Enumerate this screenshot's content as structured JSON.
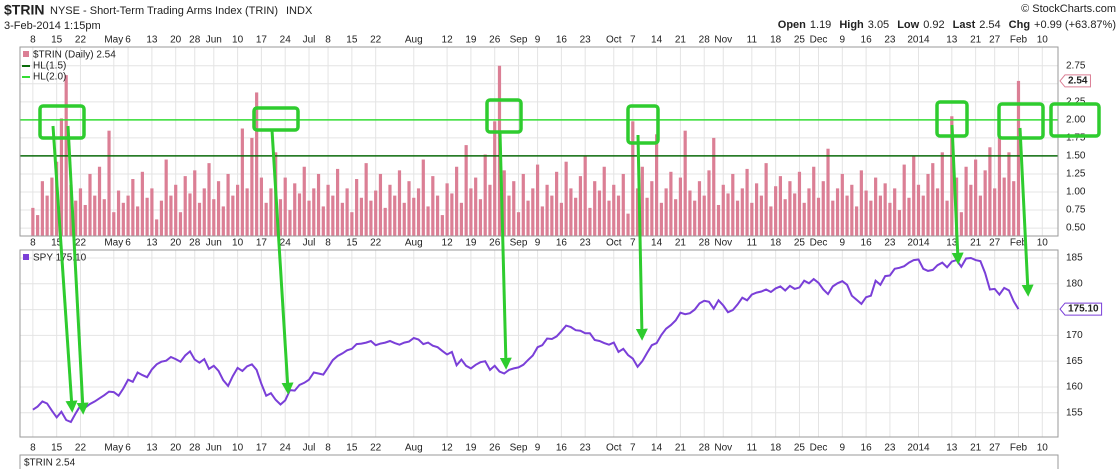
{
  "header": {
    "symbol": "$TRIN",
    "name": "NYSE - Short-Term Trading Arms Index (TRIN)",
    "exchange": "INDX",
    "timestamp": "3-Feb-2014 1:15pm",
    "credit": "© StockCharts.com",
    "quote": [
      {
        "label": "Open",
        "value": "1.19"
      },
      {
        "label": "High",
        "value": "3.05"
      },
      {
        "label": "Low",
        "value": "0.92"
      },
      {
        "label": "Last",
        "value": "2.54"
      },
      {
        "label": "Chg",
        "value": "+0.99 (+63.87%)"
      }
    ],
    "footer_label": "$TRIN 2.54"
  },
  "chart_data": [
    {
      "type": "bar",
      "legend_title": "$TRIN (Daily) 2.54",
      "color": "#db7f95",
      "grid": true,
      "xlim": [
        -2.7,
        215.3
      ],
      "ylim": [
        0.39,
        3.01
      ],
      "yticks": [
        {
          "value": 0.5,
          "label": "0.50"
        },
        {
          "value": 0.75,
          "label": "0.75"
        },
        {
          "value": 1.0,
          "label": "1.00"
        },
        {
          "value": 1.25,
          "label": "1.25"
        },
        {
          "value": 1.5,
          "label": "1.50"
        },
        {
          "value": 1.75,
          "label": "1.75"
        },
        {
          "value": 2.0,
          "label": "2.00"
        },
        {
          "value": 2.25,
          "label": "2.25"
        },
        {
          "value": 2.5,
          "label": "2.50"
        },
        {
          "value": 2.75,
          "label": "2.75"
        }
      ],
      "xticks": [
        {
          "value": 0,
          "label": "8"
        },
        {
          "value": 5,
          "label": "15"
        },
        {
          "value": 10,
          "label": "22"
        },
        {
          "value": 17,
          "label": "May"
        },
        {
          "value": 20,
          "label": "6"
        },
        {
          "value": 25,
          "label": "13"
        },
        {
          "value": 30,
          "label": "20"
        },
        {
          "value": 34,
          "label": "28"
        },
        {
          "value": 38,
          "label": "Jun"
        },
        {
          "value": 43,
          "label": "10"
        },
        {
          "value": 48,
          "label": "17"
        },
        {
          "value": 53,
          "label": "24"
        },
        {
          "value": 58,
          "label": "Jul"
        },
        {
          "value": 62,
          "label": "8"
        },
        {
          "value": 67,
          "label": "15"
        },
        {
          "value": 72,
          "label": "22"
        },
        {
          "value": 80,
          "label": "Aug"
        },
        {
          "value": 87,
          "label": "12"
        },
        {
          "value": 92,
          "label": "19"
        },
        {
          "value": 97,
          "label": "26"
        },
        {
          "value": 102,
          "label": "Sep"
        },
        {
          "value": 106,
          "label": "9"
        },
        {
          "value": 111,
          "label": "16"
        },
        {
          "value": 116,
          "label": "23"
        },
        {
          "value": 122,
          "label": "Oct"
        },
        {
          "value": 126,
          "label": "7"
        },
        {
          "value": 131,
          "label": "14"
        },
        {
          "value": 136,
          "label": "21"
        },
        {
          "value": 141,
          "label": "28"
        },
        {
          "value": 145,
          "label": "Nov"
        },
        {
          "value": 151,
          "label": "11"
        },
        {
          "value": 156,
          "label": "18"
        },
        {
          "value": 161,
          "label": "25"
        },
        {
          "value": 165,
          "label": "Dec"
        },
        {
          "value": 170,
          "label": "9"
        },
        {
          "value": 175,
          "label": "16"
        },
        {
          "value": 180,
          "label": "23"
        },
        {
          "value": 186,
          "label": "2014"
        },
        {
          "value": 193,
          "label": "13"
        },
        {
          "value": 198,
          "label": "21"
        },
        {
          "value": 202,
          "label": "27"
        },
        {
          "value": 207,
          "label": "Feb"
        },
        {
          "value": 212,
          "label": "10"
        }
      ],
      "hlines": [
        {
          "name": "HL(1.5)",
          "value": 1.5,
          "color": "#0a6b0a"
        },
        {
          "name": "HL(2.0)",
          "value": 2.0,
          "color": "#33dd33"
        }
      ],
      "last": {
        "value": 2.54,
        "label": "2.54"
      },
      "values": [
        0.78,
        0.68,
        1.15,
        0.95,
        1.2,
        1.42,
        2.02,
        2.62,
        1.1,
        0.88,
        1.05,
        0.82,
        1.25,
        0.95,
        1.35,
        0.9,
        1.85,
        0.72,
        1.02,
        0.85,
        0.95,
        1.18,
        0.8,
        1.28,
        0.92,
        1.05,
        0.62,
        0.88,
        1.45,
        0.95,
        1.1,
        0.72,
        1.22,
        0.98,
        1.3,
        0.85,
        1.05,
        1.4,
        0.9,
        1.15,
        0.8,
        1.25,
        0.95,
        1.1,
        1.88,
        1.05,
        1.75,
        2.38,
        1.2,
        0.85,
        1.05,
        1.55,
        0.9,
        1.2,
        0.75,
        1.12,
        0.98,
        1.35,
        0.88,
        1.05,
        1.25,
        0.8,
        1.1,
        0.95,
        1.32,
        0.85,
        1.05,
        0.72,
        1.18,
        0.92,
        1.4,
        0.88,
        1.02,
        1.25,
        0.78,
        1.1,
        0.95,
        1.3,
        0.85,
        1.15,
        0.92,
        1.05,
        1.45,
        0.8,
        1.22,
        0.95,
        0.68,
        1.12,
        0.98,
        1.35,
        0.85,
        1.65,
        1.05,
        1.2,
        0.9,
        1.52,
        1.1,
        1.98,
        2.75,
        1.3,
        0.95,
        1.15,
        0.72,
        1.25,
        0.88,
        1.05,
        1.38,
        0.8,
        1.1,
        0.95,
        1.28,
        0.85,
        1.42,
        1.05,
        0.92,
        1.22,
        1.5,
        0.78,
        1.15,
        1.02,
        1.35,
        0.88,
        1.1,
        0.95,
        1.25,
        0.7,
        1.98,
        1.05,
        1.35,
        0.92,
        1.15,
        1.8,
        0.85,
        1.05,
        1.28,
        0.9,
        1.2,
        1.85,
        1.02,
        0.88,
        1.15,
        0.95,
        1.3,
        1.75,
        0.82,
        1.1,
        0.98,
        1.25,
        0.88,
        1.05,
        1.32,
        0.85,
        1.12,
        0.95,
        1.4,
        0.8,
        1.08,
        1.22,
        0.9,
        1.15,
        0.98,
        1.28,
        0.85,
        1.05,
        1.35,
        0.92,
        1.15,
        1.6,
        0.88,
        1.05,
        1.25,
        0.95,
        1.1,
        0.8,
        1.3,
        1.02,
        0.88,
        1.2,
        0.95,
        1.12,
        0.85,
        1.05,
        0.75,
        1.38,
        0.92,
        1.5,
        1.1,
        0.95,
        1.25,
        1.4,
        1.05,
        1.55,
        0.88,
        2.05,
        1.2,
        0.72,
        1.35,
        1.1,
        1.45,
        0.95,
        1.3,
        1.62,
        1.05,
        1.75,
        1.2,
        1.55,
        1.15,
        2.54
      ]
    },
    {
      "type": "line",
      "legend_title": "SPY 175.10",
      "color": "#7a3fd8",
      "grid": true,
      "xlim": [
        -2.7,
        215.3
      ],
      "ylim": [
        150.3,
        186.55
      ],
      "yticks": [
        155,
        160,
        165,
        170,
        175,
        180,
        185
      ],
      "xticks": [
        {
          "value": 0,
          "label": "8"
        },
        {
          "value": 5,
          "label": "15"
        },
        {
          "value": 10,
          "label": "22"
        },
        {
          "value": 17,
          "label": "May"
        },
        {
          "value": 20,
          "label": "6"
        },
        {
          "value": 25,
          "label": "13"
        },
        {
          "value": 30,
          "label": "20"
        },
        {
          "value": 34,
          "label": "28"
        },
        {
          "value": 38,
          "label": "Jun"
        },
        {
          "value": 43,
          "label": "10"
        },
        {
          "value": 48,
          "label": "17"
        },
        {
          "value": 53,
          "label": "24"
        },
        {
          "value": 58,
          "label": "Jul"
        },
        {
          "value": 62,
          "label": "8"
        },
        {
          "value": 67,
          "label": "15"
        },
        {
          "value": 72,
          "label": "22"
        },
        {
          "value": 80,
          "label": "Aug"
        },
        {
          "value": 87,
          "label": "12"
        },
        {
          "value": 92,
          "label": "19"
        },
        {
          "value": 97,
          "label": "26"
        },
        {
          "value": 102,
          "label": "Sep"
        },
        {
          "value": 106,
          "label": "9"
        },
        {
          "value": 111,
          "label": "16"
        },
        {
          "value": 116,
          "label": "23"
        },
        {
          "value": 122,
          "label": "Oct"
        },
        {
          "value": 126,
          "label": "7"
        },
        {
          "value": 131,
          "label": "14"
        },
        {
          "value": 136,
          "label": "21"
        },
        {
          "value": 141,
          "label": "28"
        },
        {
          "value": 145,
          "label": "Nov"
        },
        {
          "value": 151,
          "label": "11"
        },
        {
          "value": 156,
          "label": "18"
        },
        {
          "value": 161,
          "label": "25"
        },
        {
          "value": 165,
          "label": "Dec"
        },
        {
          "value": 170,
          "label": "9"
        },
        {
          "value": 175,
          "label": "16"
        },
        {
          "value": 180,
          "label": "23"
        },
        {
          "value": 186,
          "label": "2014"
        },
        {
          "value": 193,
          "label": "13"
        },
        {
          "value": 198,
          "label": "21"
        },
        {
          "value": 202,
          "label": "27"
        },
        {
          "value": 207,
          "label": "Feb"
        },
        {
          "value": 212,
          "label": "10"
        }
      ],
      "last": {
        "value": 175.1,
        "label": "175.10"
      },
      "values": [
        155.6,
        156.2,
        157.2,
        156.8,
        155.4,
        154.1,
        155.2,
        153.6,
        153.2,
        154.9,
        156.4,
        156.0,
        156.7,
        157.2,
        157.8,
        158.4,
        159.1,
        159.0,
        158.3,
        159.7,
        161.4,
        161.0,
        162.8,
        162.3,
        161.9,
        163.4,
        164.4,
        164.9,
        165.1,
        165.8,
        165.4,
        164.9,
        166.1,
        166.9,
        165.3,
        164.7,
        165.4,
        163.5,
        164.1,
        163.1,
        161.3,
        160.2,
        162.1,
        163.7,
        163.1,
        164.0,
        164.4,
        163.3,
        160.6,
        158.3,
        158.8,
        157.5,
        156.6,
        157.4,
        159.4,
        159.3,
        160.4,
        160.8,
        161.4,
        162.8,
        162.6,
        162.4,
        163.8,
        165.2,
        166.0,
        166.5,
        167.1,
        167.4,
        168.3,
        168.4,
        168.6,
        168.9,
        168.1,
        168.4,
        168.6,
        168.9,
        168.5,
        168.2,
        168.6,
        168.8,
        169.5,
        169.2,
        168.3,
        168.6,
        168.0,
        167.7,
        167.0,
        166.3,
        166.8,
        164.2,
        165.3,
        164.1,
        163.6,
        164.3,
        164.8,
        165.0,
        163.3,
        164.1,
        163.0,
        162.6,
        163.3,
        163.6,
        163.8,
        164.3,
        165.2,
        166.1,
        167.7,
        168.1,
        169.4,
        169.3,
        169.8,
        170.8,
        171.9,
        171.6,
        171.0,
        170.9,
        170.4,
        170.4,
        169.1,
        168.9,
        168.5,
        168.2,
        168.6,
        166.8,
        167.4,
        166.2,
        165.5,
        163.9,
        165.0,
        166.6,
        168.1,
        168.5,
        170.1,
        171.3,
        172.0,
        172.9,
        174.4,
        174.1,
        174.3,
        175.0,
        176.2,
        176.7,
        176.5,
        175.2,
        176.8,
        175.8,
        174.5,
        174.9,
        176.0,
        177.3,
        176.8,
        177.9,
        178.3,
        178.5,
        178.9,
        178.4,
        179.1,
        179.5,
        178.7,
        179.6,
        179.0,
        179.3,
        180.6,
        180.1,
        180.9,
        180.2,
        178.9,
        178.0,
        179.5,
        180.1,
        180.5,
        179.8,
        177.7,
        176.9,
        176.1,
        177.4,
        177.7,
        180.6,
        179.8,
        181.5,
        181.6,
        182.9,
        183.1,
        183.4,
        184.1,
        184.6,
        184.7,
        182.9,
        182.5,
        182.7,
        183.6,
        184.1,
        183.2,
        184.3,
        184.6,
        183.3,
        184.9,
        185.0,
        184.6,
        184.4,
        182.1,
        178.9,
        179.0,
        177.9,
        179.2,
        178.7,
        176.6,
        175.1
      ]
    }
  ]
}
